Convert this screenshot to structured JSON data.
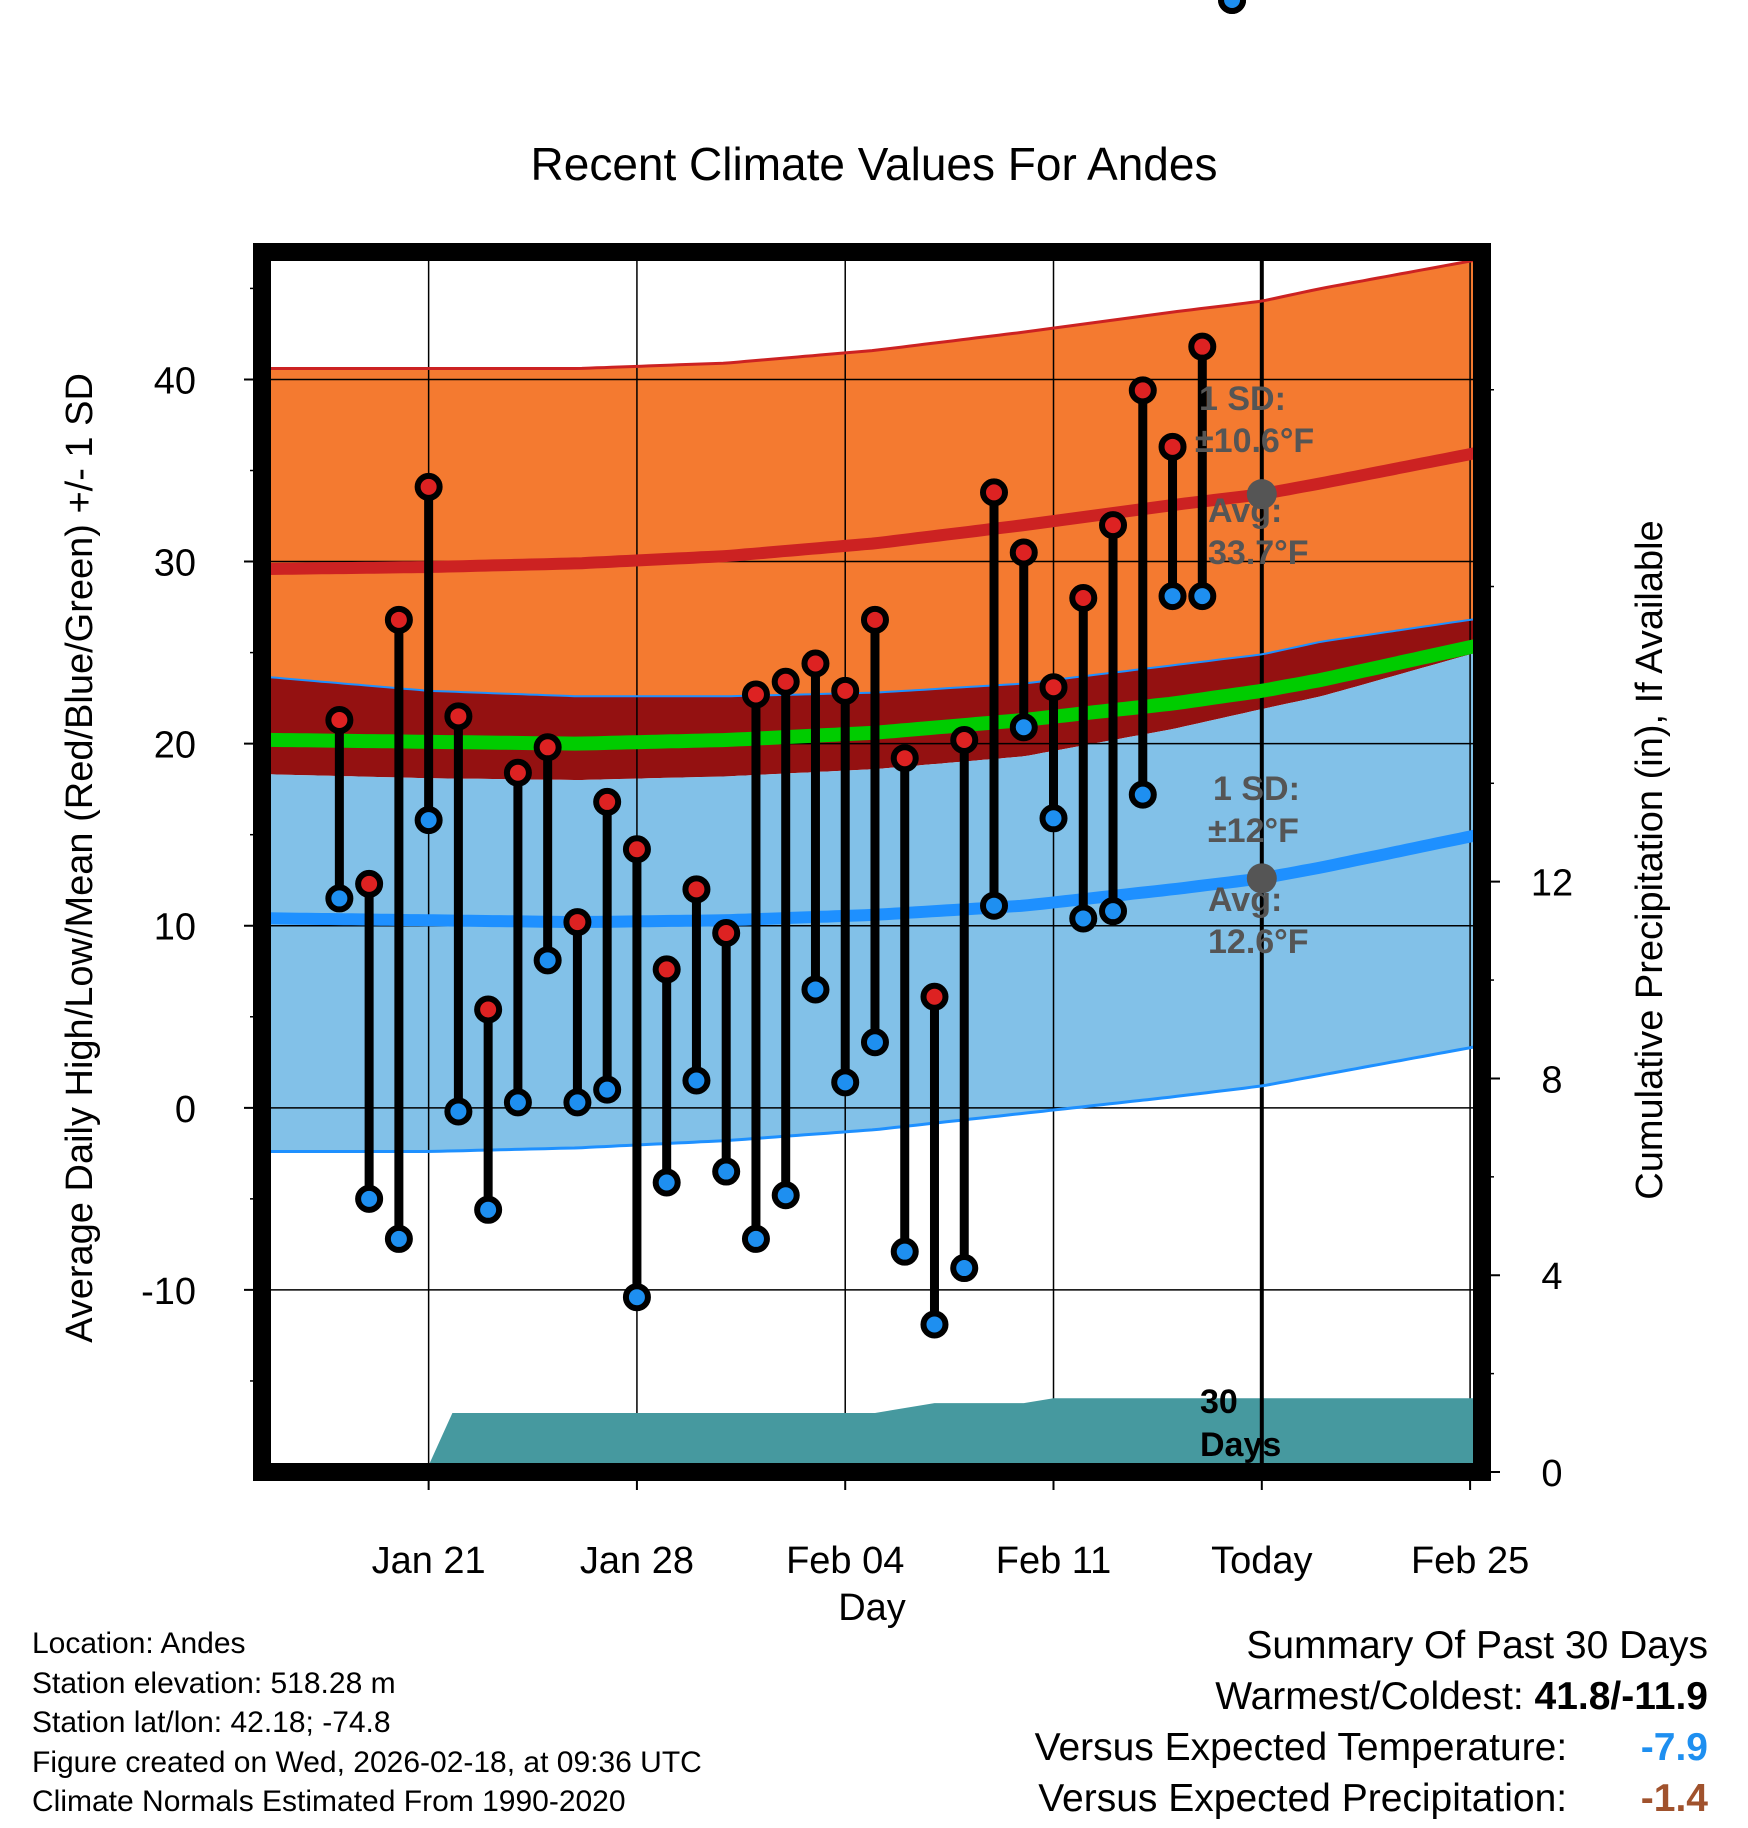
{
  "chart_data": {
    "type": "line",
    "title": "Recent Climate Values For Andes",
    "xlabel": "Day",
    "ylabel": "Average Daily High/Low/Mean (Red/Blue/Green) +/- 1 SD",
    "y2label": "Cumulative Precipitation (in), If Available",
    "ylim": [
      -20,
      47
    ],
    "y2lim": [
      0,
      24.8
    ],
    "xlim": [
      -3.6,
      37.4
    ],
    "yticks": [
      40,
      30,
      20,
      10,
      0,
      -10
    ],
    "y2ticks": [
      12,
      8,
      4,
      0
    ],
    "xticks": [
      {
        "day": 2,
        "label": "Jan 21"
      },
      {
        "day": 9,
        "label": "Jan 28"
      },
      {
        "day": 16,
        "label": "Feb 04"
      },
      {
        "day": 23,
        "label": "Feb 11"
      },
      {
        "day": 30,
        "label": "Today"
      },
      {
        "day": 37,
        "label": "Feb 25"
      }
    ],
    "today_day": 30,
    "days": [
      -1,
      0,
      1,
      2,
      3,
      4,
      5,
      6,
      7,
      8,
      9,
      10,
      11,
      12,
      13,
      14,
      15,
      16,
      17,
      18,
      19,
      20,
      21,
      22,
      23,
      24,
      25,
      26,
      27,
      28,
      29
    ],
    "highs": [
      21.3,
      12.3,
      26.8,
      34.1,
      21.5,
      5.4,
      18.4,
      19.8,
      10.2,
      16.8,
      14.2,
      7.6,
      12.0,
      9.6,
      22.7,
      23.4,
      24.4,
      22.9,
      26.8,
      19.2,
      6.1,
      20.2,
      33.8,
      30.5,
      23.1,
      28.0,
      32.0,
      39.4,
      36.3,
      41.8
    ],
    "lows": [
      11.5,
      -5.0,
      -7.2,
      15.8,
      -0.2,
      -5.6,
      0.3,
      8.1,
      0.3,
      1.0,
      -10.4,
      -4.1,
      1.5,
      -3.5,
      -7.2,
      -4.8,
      6.5,
      1.4,
      3.6,
      -7.9,
      -11.9,
      -8.8,
      11.1,
      20.9,
      15.9,
      10.4,
      10.8,
      17.2,
      28.1,
      28.1
    ],
    "normals": {
      "days": [
        -3,
        2,
        7,
        12,
        17,
        22,
        27,
        30,
        32,
        37
      ],
      "high_avg": [
        29.6,
        29.7,
        29.9,
        30.3,
        31.0,
        32.0,
        33.1,
        33.7,
        34.3,
        35.9
      ],
      "high_upper": [
        40.6,
        40.6,
        40.6,
        40.9,
        41.6,
        42.6,
        43.7,
        44.3,
        45.0,
        46.5
      ],
      "high_lower": [
        23.6,
        22.9,
        22.6,
        22.6,
        22.8,
        23.3,
        24.3,
        24.9,
        25.6,
        26.8
      ],
      "mean_avg": [
        20.2,
        20.1,
        20.0,
        20.2,
        20.6,
        21.3,
        22.2,
        22.9,
        23.5,
        25.3
      ],
      "low_avg": [
        10.4,
        10.3,
        10.2,
        10.3,
        10.6,
        11.1,
        12.0,
        12.6,
        13.2,
        14.9
      ],
      "low_upper": [
        18.3,
        18.1,
        18.0,
        18.2,
        18.6,
        19.3,
        20.8,
        21.9,
        22.6,
        24.9
      ],
      "low_lower": [
        -2.4,
        -2.4,
        -2.2,
        -1.8,
        -1.2,
        -0.3,
        0.6,
        1.2,
        1.8,
        3.3
      ]
    },
    "precip": {
      "days": [
        -3,
        1.9,
        2.8,
        5,
        10,
        16,
        17,
        19,
        22,
        23,
        37.4
      ],
      "values": [
        0,
        0,
        1.2,
        1.2,
        1.2,
        1.2,
        1.2,
        1.4,
        1.4,
        1.5,
        1.5
      ]
    },
    "annotations": {
      "high_sd_label": "1 SD:",
      "high_sd_value": "±10.6°F",
      "high_avg_label": "Avg:",
      "high_avg_value": "33.7°F",
      "low_sd_label": "1 SD:",
      "low_sd_value": "±12°F",
      "low_avg_label": "Avg:",
      "low_avg_value": "12.6°F",
      "days_label_1": "30",
      "days_label_2": "Days"
    },
    "colors": {
      "high_band": "#f47a30",
      "high_line": "#cc2222",
      "high_dark": "#941111",
      "mean_line": "#00cc00",
      "low_band": "#82c1e8",
      "low_line": "#1e90ff",
      "precip": "#46999f",
      "high_dot": "#dd2222",
      "low_dot": "#1e8ff0"
    }
  },
  "info": {
    "location": "Location: Andes",
    "elevation": "Station elevation: 518.28 m",
    "latlon": "Station lat/lon: 42.18; -74.8",
    "created": "Figure created on Wed, 2026-02-18, at 09:36 UTC",
    "normals": "Climate Normals Estimated From 1990-2020"
  },
  "summary": {
    "title": "Summary Of Past 30 Days",
    "warm_cold_label": "Warmest/Coldest:",
    "warm_cold_value": "41.8/-11.9",
    "temp_label": "Versus Expected Temperature:",
    "temp_value": "-7.9",
    "temp_color": "#1e8ff0",
    "precip_label": "Versus Expected Precipitation:",
    "precip_value": "-1.4",
    "precip_color": "#a0522d"
  }
}
